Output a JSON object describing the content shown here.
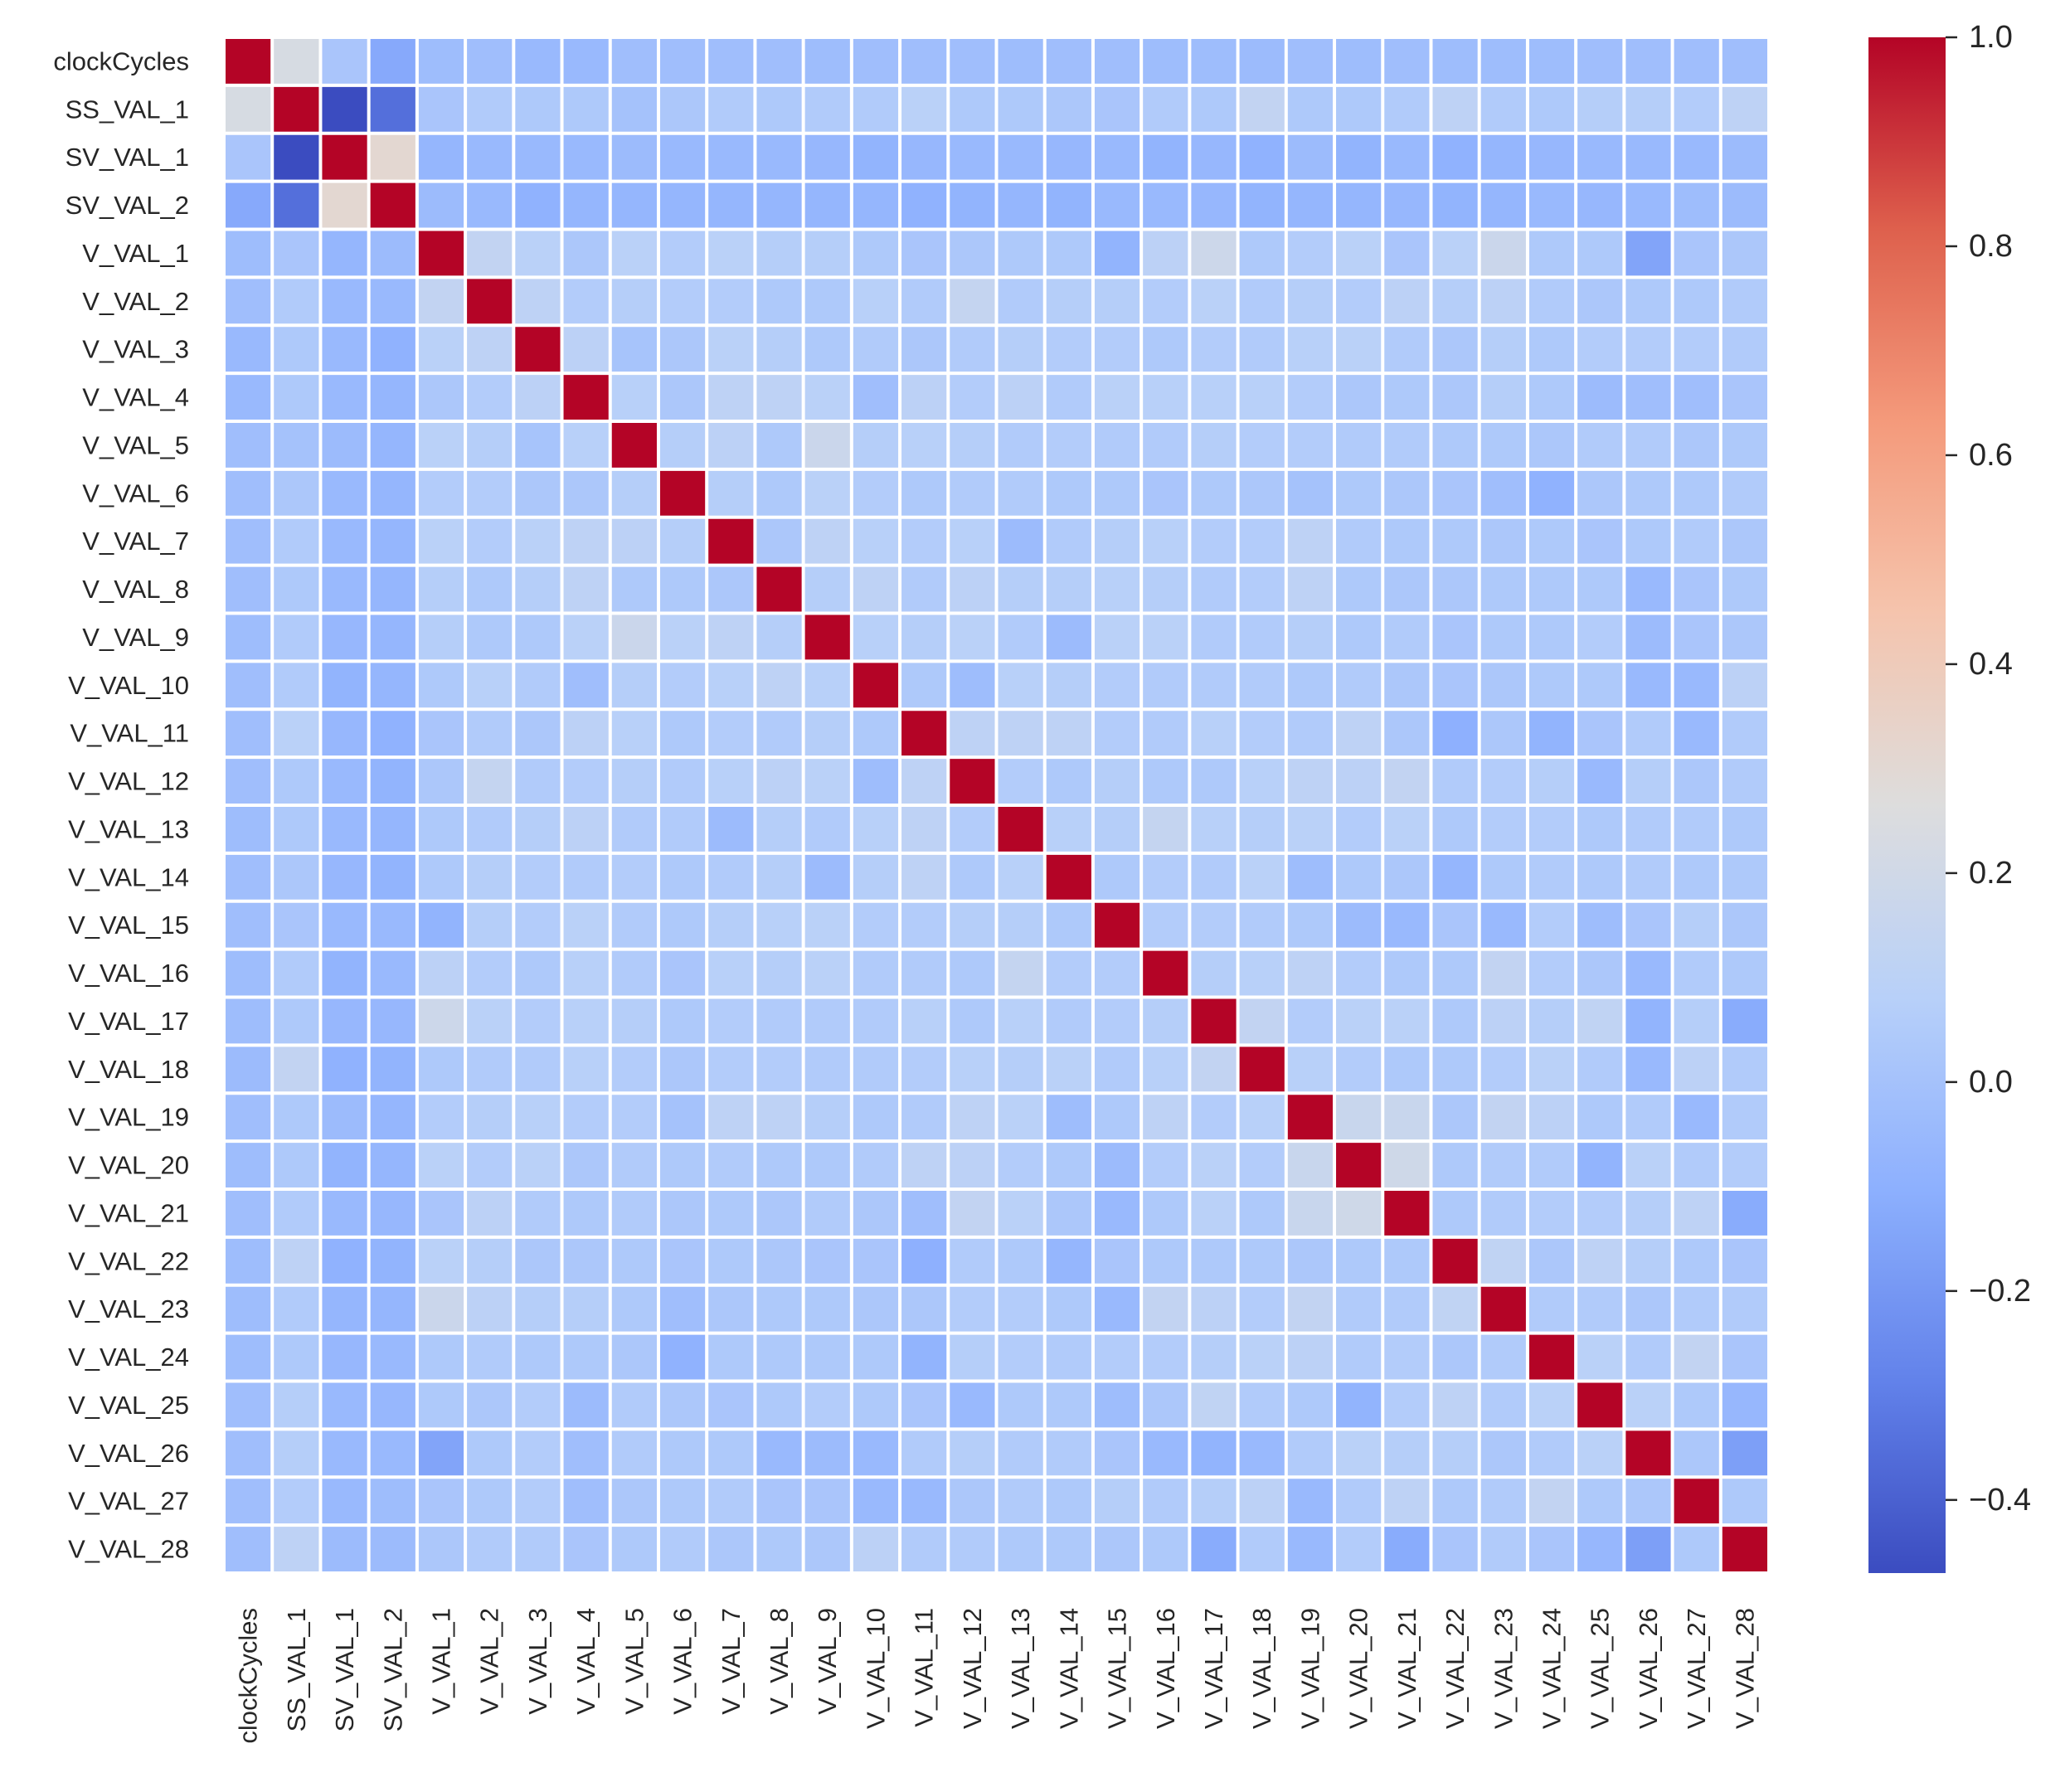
{
  "chart_data": {
    "type": "heatmap",
    "title": "",
    "xlabel": "",
    "ylabel": "",
    "labels": [
      "clockCycles",
      "SS_VAL_1",
      "SV_VAL_1",
      "SV_VAL_2",
      "V_VAL_1",
      "V_VAL_2",
      "V_VAL_3",
      "V_VAL_4",
      "V_VAL_5",
      "V_VAL_6",
      "V_VAL_7",
      "V_VAL_8",
      "V_VAL_9",
      "V_VAL_10",
      "V_VAL_11",
      "V_VAL_12",
      "V_VAL_13",
      "V_VAL_14",
      "V_VAL_15",
      "V_VAL_16",
      "V_VAL_17",
      "V_VAL_18",
      "V_VAL_19",
      "V_VAL_20",
      "V_VAL_21",
      "V_VAL_22",
      "V_VAL_23",
      "V_VAL_24",
      "V_VAL_25",
      "V_VAL_26",
      "V_VAL_27",
      "V_VAL_28"
    ],
    "colormap": "coolwarm",
    "vmin": -0.47,
    "vmax": 1.0,
    "colorbar_ticks": [
      "1.0",
      "0.8",
      "0.6",
      "0.4",
      "0.2",
      "0.0",
      "−0.2",
      "−0.4"
    ],
    "colorbar_tick_values": [
      1.0,
      0.8,
      0.6,
      0.4,
      0.2,
      0.0,
      -0.2,
      -0.4
    ],
    "cell_border_color": "#ffffff",
    "values": [
      [
        1.0,
        0.23,
        0.02,
        -0.13,
        -0.03,
        -0.02,
        -0.05,
        -0.05,
        -0.02,
        -0.02,
        -0.02,
        -0.02,
        -0.03,
        -0.02,
        -0.02,
        -0.02,
        -0.03,
        -0.02,
        -0.02,
        -0.03,
        -0.03,
        -0.04,
        -0.02,
        -0.03,
        -0.02,
        -0.03,
        -0.03,
        -0.03,
        -0.02,
        -0.02,
        -0.02,
        -0.02
      ],
      [
        0.23,
        1.0,
        -0.47,
        -0.35,
        0.02,
        0.05,
        0.04,
        0.04,
        0.0,
        0.03,
        0.05,
        0.04,
        0.05,
        0.05,
        0.09,
        0.04,
        0.04,
        0.03,
        0.02,
        0.05,
        0.04,
        0.13,
        0.04,
        0.04,
        0.05,
        0.11,
        0.05,
        0.04,
        0.07,
        0.07,
        0.06,
        0.11
      ],
      [
        0.02,
        -0.47,
        1.0,
        0.31,
        -0.07,
        -0.05,
        -0.05,
        -0.05,
        -0.04,
        -0.05,
        -0.05,
        -0.05,
        -0.06,
        -0.08,
        -0.06,
        -0.05,
        -0.05,
        -0.06,
        -0.05,
        -0.08,
        -0.06,
        -0.09,
        -0.04,
        -0.08,
        -0.05,
        -0.09,
        -0.07,
        -0.06,
        -0.05,
        -0.05,
        -0.05,
        -0.04
      ],
      [
        -0.13,
        -0.35,
        0.31,
        1.0,
        -0.04,
        -0.05,
        -0.09,
        -0.07,
        -0.07,
        -0.07,
        -0.07,
        -0.07,
        -0.07,
        -0.07,
        -0.09,
        -0.08,
        -0.07,
        -0.08,
        -0.05,
        -0.05,
        -0.06,
        -0.08,
        -0.07,
        -0.07,
        -0.06,
        -0.08,
        -0.07,
        -0.05,
        -0.06,
        -0.05,
        -0.03,
        -0.04
      ],
      [
        -0.03,
        0.02,
        -0.07,
        -0.04,
        1.0,
        0.13,
        0.09,
        0.03,
        0.09,
        0.06,
        0.09,
        0.07,
        0.07,
        0.04,
        0.02,
        0.03,
        0.04,
        0.04,
        -0.08,
        0.1,
        0.18,
        0.04,
        0.06,
        0.09,
        0.02,
        0.09,
        0.17,
        0.04,
        0.04,
        -0.15,
        0.02,
        0.03
      ],
      [
        -0.02,
        0.05,
        -0.05,
        -0.05,
        0.13,
        1.0,
        0.11,
        0.06,
        0.07,
        0.06,
        0.06,
        0.04,
        0.04,
        0.08,
        0.05,
        0.14,
        0.05,
        0.07,
        0.07,
        0.06,
        0.09,
        0.05,
        0.07,
        0.06,
        0.1,
        0.07,
        0.1,
        0.05,
        0.03,
        0.04,
        0.04,
        0.05
      ],
      [
        -0.05,
        0.04,
        -0.05,
        -0.09,
        0.09,
        0.11,
        1.0,
        0.1,
        0.01,
        0.03,
        0.09,
        0.07,
        0.04,
        0.05,
        0.03,
        0.05,
        0.07,
        0.06,
        0.06,
        0.04,
        0.06,
        0.05,
        0.08,
        0.09,
        0.05,
        0.03,
        0.07,
        0.04,
        0.06,
        0.06,
        0.06,
        0.05
      ],
      [
        -0.05,
        0.04,
        -0.05,
        -0.07,
        0.03,
        0.06,
        0.1,
        1.0,
        0.08,
        0.03,
        0.11,
        0.11,
        0.09,
        -0.02,
        0.1,
        0.06,
        0.1,
        0.05,
        0.09,
        0.08,
        0.08,
        0.08,
        0.06,
        0.03,
        0.04,
        0.03,
        0.07,
        0.04,
        -0.04,
        -0.02,
        -0.02,
        0.02
      ],
      [
        -0.02,
        0.0,
        -0.04,
        -0.07,
        0.09,
        0.07,
        0.01,
        0.08,
        1.0,
        0.07,
        0.1,
        0.04,
        0.17,
        0.07,
        0.08,
        0.07,
        0.05,
        0.06,
        0.05,
        0.05,
        0.07,
        0.06,
        0.06,
        0.05,
        0.05,
        0.04,
        0.04,
        0.03,
        0.05,
        0.05,
        0.03,
        0.04
      ],
      [
        -0.02,
        0.03,
        -0.05,
        -0.07,
        0.06,
        0.06,
        0.03,
        0.03,
        0.07,
        1.0,
        0.07,
        0.04,
        0.09,
        0.06,
        0.04,
        0.05,
        0.05,
        0.04,
        0.04,
        0.02,
        0.04,
        0.03,
        0.0,
        0.04,
        0.03,
        0.02,
        -0.02,
        -0.09,
        0.03,
        0.04,
        0.04,
        0.05
      ],
      [
        -0.02,
        0.05,
        -0.05,
        -0.07,
        0.09,
        0.06,
        0.09,
        0.11,
        0.1,
        0.07,
        1.0,
        0.03,
        0.11,
        0.08,
        0.06,
        0.08,
        -0.04,
        0.05,
        0.07,
        0.08,
        0.06,
        0.06,
        0.11,
        0.05,
        0.04,
        0.04,
        0.03,
        0.04,
        0.02,
        0.04,
        0.05,
        0.03
      ],
      [
        -0.02,
        0.04,
        -0.05,
        -0.07,
        0.07,
        0.04,
        0.07,
        0.11,
        0.04,
        0.04,
        0.03,
        1.0,
        0.07,
        0.11,
        0.05,
        0.1,
        0.07,
        0.07,
        0.08,
        0.07,
        0.05,
        0.06,
        0.11,
        0.04,
        0.03,
        0.03,
        0.04,
        0.04,
        0.04,
        -0.05,
        0.02,
        0.04
      ],
      [
        -0.03,
        0.05,
        -0.06,
        -0.07,
        0.07,
        0.04,
        0.04,
        0.09,
        0.17,
        0.09,
        0.11,
        0.07,
        1.0,
        0.08,
        0.07,
        0.09,
        0.05,
        -0.04,
        0.09,
        0.09,
        0.05,
        0.05,
        0.07,
        0.04,
        0.05,
        0.02,
        0.04,
        0.04,
        0.06,
        -0.04,
        0.02,
        0.03
      ],
      [
        -0.02,
        0.05,
        -0.08,
        -0.07,
        0.04,
        0.08,
        0.05,
        -0.02,
        0.07,
        0.06,
        0.08,
        0.11,
        0.08,
        1.0,
        0.04,
        -0.03,
        0.08,
        0.07,
        0.06,
        0.05,
        0.05,
        0.05,
        0.04,
        0.05,
        0.03,
        0.02,
        0.03,
        0.04,
        0.04,
        -0.05,
        -0.05,
        0.1
      ],
      [
        -0.02,
        0.09,
        -0.06,
        -0.09,
        0.02,
        0.05,
        0.03,
        0.1,
        0.08,
        0.04,
        0.06,
        0.05,
        0.07,
        0.04,
        1.0,
        0.11,
        0.11,
        0.11,
        0.06,
        0.05,
        0.08,
        0.06,
        0.05,
        0.11,
        0.03,
        -0.1,
        0.03,
        -0.08,
        0.02,
        0.05,
        -0.05,
        0.05
      ],
      [
        -0.02,
        0.04,
        -0.05,
        -0.08,
        0.03,
        0.14,
        0.05,
        0.06,
        0.07,
        0.05,
        0.08,
        0.1,
        0.09,
        -0.03,
        0.11,
        1.0,
        0.06,
        0.04,
        0.07,
        0.04,
        0.04,
        0.08,
        0.11,
        0.1,
        0.13,
        0.05,
        0.06,
        0.07,
        -0.05,
        0.07,
        0.03,
        0.05
      ],
      [
        -0.03,
        0.04,
        -0.05,
        -0.07,
        0.04,
        0.05,
        0.07,
        0.1,
        0.05,
        0.05,
        -0.04,
        0.07,
        0.05,
        0.08,
        0.11,
        0.06,
        1.0,
        0.08,
        0.07,
        0.14,
        0.08,
        0.07,
        0.09,
        0.06,
        0.09,
        0.04,
        0.06,
        0.06,
        0.04,
        0.05,
        0.05,
        0.04
      ],
      [
        -0.02,
        0.03,
        -0.06,
        -0.08,
        0.04,
        0.07,
        0.06,
        0.05,
        0.06,
        0.04,
        0.05,
        0.07,
        -0.04,
        0.07,
        0.11,
        0.04,
        0.08,
        1.0,
        0.04,
        0.06,
        0.05,
        0.09,
        -0.03,
        0.04,
        0.03,
        -0.07,
        0.04,
        0.05,
        0.04,
        0.05,
        0.04,
        0.04
      ],
      [
        -0.02,
        0.02,
        -0.05,
        -0.05,
        -0.08,
        0.07,
        0.06,
        0.09,
        0.05,
        0.04,
        0.07,
        0.08,
        0.09,
        0.06,
        0.06,
        0.07,
        0.07,
        0.04,
        1.0,
        0.06,
        0.06,
        0.05,
        0.04,
        -0.04,
        -0.05,
        0.02,
        -0.05,
        0.06,
        -0.03,
        0.02,
        0.07,
        0.03
      ],
      [
        -0.03,
        0.05,
        -0.08,
        -0.05,
        0.1,
        0.06,
        0.04,
        0.08,
        0.05,
        0.02,
        0.08,
        0.07,
        0.09,
        0.05,
        0.05,
        0.04,
        0.14,
        0.06,
        0.06,
        1.0,
        0.07,
        0.08,
        0.11,
        0.06,
        0.04,
        0.04,
        0.13,
        0.06,
        0.03,
        -0.05,
        0.05,
        0.04
      ],
      [
        -0.03,
        0.04,
        -0.06,
        -0.06,
        0.18,
        0.09,
        0.06,
        0.08,
        0.07,
        0.04,
        0.06,
        0.05,
        0.05,
        0.05,
        0.08,
        0.04,
        0.08,
        0.05,
        0.06,
        0.07,
        1.0,
        0.13,
        0.06,
        0.09,
        0.09,
        0.04,
        0.1,
        0.07,
        0.12,
        -0.08,
        0.07,
        -0.12
      ],
      [
        -0.04,
        0.13,
        -0.09,
        -0.08,
        0.04,
        0.05,
        0.05,
        0.08,
        0.06,
        0.03,
        0.06,
        0.06,
        0.05,
        0.05,
        0.06,
        0.08,
        0.07,
        0.09,
        0.05,
        0.08,
        0.13,
        1.0,
        0.08,
        0.06,
        0.04,
        0.04,
        0.06,
        0.09,
        0.05,
        -0.05,
        0.1,
        0.05
      ],
      [
        -0.02,
        0.04,
        -0.04,
        -0.07,
        0.06,
        0.07,
        0.08,
        0.06,
        0.06,
        0.0,
        0.11,
        0.11,
        0.07,
        0.04,
        0.05,
        0.11,
        0.09,
        -0.03,
        0.04,
        0.11,
        0.06,
        0.08,
        1.0,
        0.16,
        0.16,
        0.03,
        0.13,
        0.1,
        0.04,
        0.05,
        -0.05,
        0.05
      ],
      [
        -0.03,
        0.04,
        -0.08,
        -0.07,
        0.09,
        0.06,
        0.09,
        0.03,
        0.05,
        0.04,
        0.05,
        0.04,
        0.04,
        0.05,
        0.11,
        0.1,
        0.06,
        0.04,
        -0.04,
        0.06,
        0.09,
        0.06,
        0.16,
        1.0,
        0.19,
        0.04,
        0.05,
        0.05,
        -0.08,
        0.09,
        0.05,
        0.06
      ],
      [
        -0.02,
        0.05,
        -0.05,
        -0.06,
        0.02,
        0.1,
        0.05,
        0.04,
        0.05,
        0.03,
        0.04,
        0.03,
        0.05,
        0.03,
        -0.02,
        0.13,
        0.09,
        0.03,
        -0.05,
        0.04,
        0.09,
        0.04,
        0.16,
        0.19,
        1.0,
        0.04,
        0.05,
        0.06,
        0.06,
        0.07,
        0.11,
        -0.12
      ],
      [
        -0.03,
        0.11,
        -0.09,
        -0.08,
        0.09,
        0.07,
        0.03,
        0.03,
        0.04,
        0.02,
        0.04,
        0.03,
        0.02,
        0.02,
        -0.1,
        0.05,
        0.04,
        -0.07,
        0.02,
        0.04,
        0.04,
        0.04,
        0.03,
        0.04,
        0.04,
        1.0,
        0.12,
        0.03,
        0.11,
        0.07,
        0.04,
        0.02
      ],
      [
        -0.03,
        0.05,
        -0.07,
        -0.07,
        0.17,
        0.1,
        0.07,
        0.07,
        0.04,
        -0.02,
        0.03,
        0.04,
        0.04,
        0.03,
        0.03,
        0.06,
        0.06,
        0.04,
        -0.05,
        0.13,
        0.1,
        0.06,
        0.13,
        0.05,
        0.05,
        0.12,
        1.0,
        0.05,
        0.05,
        0.03,
        0.05,
        0.05
      ],
      [
        -0.03,
        0.04,
        -0.06,
        -0.05,
        0.04,
        0.05,
        0.04,
        0.04,
        0.03,
        -0.09,
        0.04,
        0.04,
        0.04,
        0.04,
        -0.08,
        0.07,
        0.06,
        0.05,
        0.06,
        0.06,
        0.07,
        0.09,
        0.1,
        0.05,
        0.06,
        0.03,
        0.05,
        1.0,
        0.09,
        0.05,
        0.13,
        0.02
      ],
      [
        -0.02,
        0.07,
        -0.05,
        -0.06,
        0.04,
        0.03,
        0.06,
        -0.04,
        0.05,
        0.03,
        0.02,
        0.04,
        0.06,
        0.04,
        0.02,
        -0.05,
        0.04,
        0.04,
        -0.03,
        0.03,
        0.12,
        0.05,
        0.04,
        -0.08,
        0.06,
        0.11,
        0.05,
        0.09,
        1.0,
        0.09,
        0.04,
        -0.06
      ],
      [
        -0.02,
        0.07,
        -0.05,
        -0.05,
        -0.15,
        0.04,
        0.06,
        -0.02,
        0.05,
        0.04,
        0.04,
        -0.05,
        -0.04,
        -0.05,
        0.05,
        0.07,
        0.05,
        0.05,
        0.02,
        -0.05,
        -0.08,
        -0.05,
        0.05,
        0.09,
        0.07,
        0.07,
        0.03,
        0.05,
        0.09,
        1.0,
        0.03,
        -0.17
      ],
      [
        -0.02,
        0.06,
        -0.05,
        -0.03,
        0.02,
        0.04,
        0.06,
        -0.02,
        0.03,
        0.04,
        0.05,
        0.02,
        0.02,
        -0.05,
        -0.05,
        0.03,
        0.05,
        0.04,
        0.07,
        0.05,
        0.07,
        0.1,
        -0.05,
        0.05,
        0.11,
        0.04,
        0.05,
        0.13,
        0.04,
        0.03,
        1.0,
        0.04
      ],
      [
        -0.02,
        0.11,
        -0.04,
        -0.04,
        0.03,
        0.05,
        0.05,
        0.02,
        0.04,
        0.05,
        0.03,
        0.04,
        0.03,
        0.1,
        0.05,
        0.05,
        0.04,
        0.04,
        0.03,
        0.04,
        -0.12,
        0.05,
        -0.05,
        0.06,
        -0.12,
        0.02,
        0.05,
        0.02,
        -0.06,
        -0.17,
        0.04,
        1.0
      ]
    ]
  }
}
